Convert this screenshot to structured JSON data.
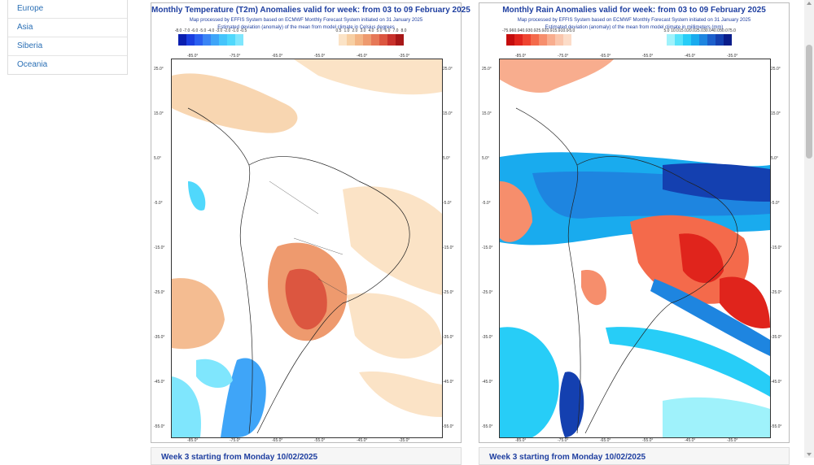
{
  "sidebar": {
    "items": [
      {
        "label": "Europe"
      },
      {
        "label": "Asia"
      },
      {
        "label": "Siberia"
      },
      {
        "label": "Oceania"
      }
    ]
  },
  "temp_map": {
    "title": "Monthly Temperature (T2m) Anomalies valid for week: from 03 to 09 February 2025",
    "subtitle1": "Map processed by EFFIS System based on ECMWF Monthly Forecast System initiated on 31 January 2025",
    "subtitle2": "Estimated deviation (anomaly) of the mean from model climate in Celsius degrees",
    "legend_neg": [
      "-8.0",
      "-7.0",
      "-6.0",
      "-5.0",
      "-4.0",
      "-3.0",
      "-2.0",
      "-1.0",
      "-0.5"
    ],
    "legend_pos": [
      "0.5",
      "1.0",
      "2.0",
      "3.0",
      "4.0",
      "5.0",
      "6.0",
      "7.0",
      "8.0"
    ],
    "colors_neg": [
      "#0a1fb0",
      "#1a3ee0",
      "#2a5ff0",
      "#3a84f5",
      "#3fa5f8",
      "#45c4fb",
      "#50d8fc",
      "#7fe6fd"
    ],
    "colors_pos": [
      "#fbe3c6",
      "#f7cfa3",
      "#f3b585",
      "#ee9a6e",
      "#e67857",
      "#dc5640",
      "#c8322c",
      "#a71818"
    ]
  },
  "rain_map": {
    "title": "Monthly Rain Anomalies valid for week: from 03 to 09 February 2025",
    "subtitle1": "Map processed by EFFIS System based on ECMWF Monthly Forecast System initiated on 31 January 2025",
    "subtitle2": "Estimated deviation (anomaly) of the mean from model climate in millimeters (mm)",
    "legend_neg": [
      "-75.0",
      "-60.0",
      "-40.0",
      "-30.0",
      "-25.0",
      "-20.0",
      "-15.0",
      "-10.0",
      "-5.0"
    ],
    "legend_pos": [
      "5.0",
      "10.0",
      "15.0",
      "20.0",
      "25.0",
      "30.0",
      "40.0",
      "50.0",
      "75.0"
    ],
    "colors_neg": [
      "#c40d0d",
      "#e0241c",
      "#ef4430",
      "#f46a4b",
      "#f68e6c",
      "#f8ad8e",
      "#fac6ac",
      "#fcdcc8"
    ],
    "colors_pos": [
      "#9ff2fb",
      "#57e3fa",
      "#27cdf7",
      "#19abee",
      "#1e85e0",
      "#1c5fcb",
      "#1440b0",
      "#0a1d8a"
    ]
  },
  "lat_labels": [
    "25.0°",
    "15.0°",
    "5.0°",
    "-5.0°",
    "-15.0°",
    "-25.0°",
    "-35.0°",
    "-45.0°",
    "-55.0°"
  ],
  "lon_labels": [
    "-85.0°",
    "-75.0°",
    "-65.0°",
    "-55.0°",
    "-45.0°",
    "-35.0°"
  ],
  "bottom_cards": [
    {
      "label": "Week 3 starting from Monday 10/02/2025"
    },
    {
      "label": "Week 3 starting from Monday 10/02/2025"
    }
  ]
}
